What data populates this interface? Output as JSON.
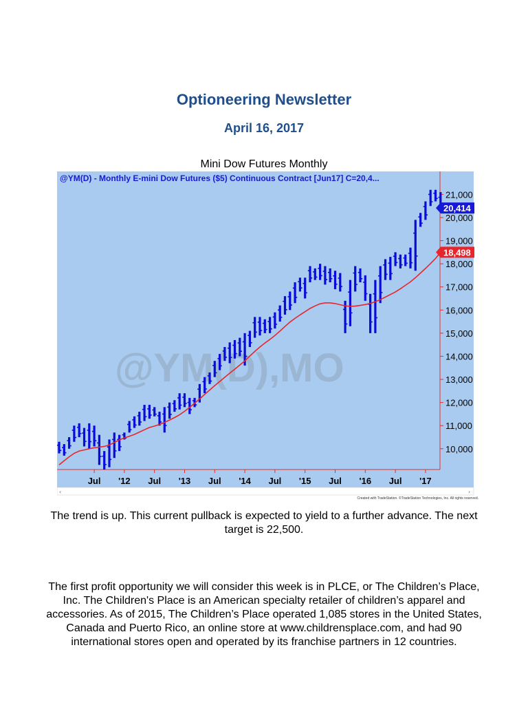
{
  "header": {
    "title": "Optioneering Newsletter",
    "date": "April 16, 2017"
  },
  "chart_caption": "Mini Dow Futures Monthly",
  "chart_data": {
    "type": "ohlc-bar",
    "title": "@YM(D) - Monthly  E-mini Dow Futures ($5) Continuous Contract [Jun17]  C=20,4...",
    "watermark": "@YM(D),MO",
    "footer_credit": "Created with TradeStation. ©TradeStation Technologies, Inc. All rights reserved.",
    "price_tag": "20,414",
    "ma_tag": "18,498",
    "ylim": [
      9100,
      21400
    ],
    "y_ticks": [
      {
        "label": "21,000",
        "value": 21000
      },
      {
        "label": "20,000",
        "value": 20000
      },
      {
        "label": "19,000",
        "value": 19000
      },
      {
        "label": "18,000",
        "value": 18000
      },
      {
        "label": "17,000",
        "value": 17000
      },
      {
        "label": "16,000",
        "value": 16000
      },
      {
        "label": "15,000",
        "value": 15000
      },
      {
        "label": "14,000",
        "value": 14000
      },
      {
        "label": "13,000",
        "value": 13000
      },
      {
        "label": "12,000",
        "value": 12000
      },
      {
        "label": "11,000",
        "value": 11000
      },
      {
        "label": "10,000",
        "value": 10000
      }
    ],
    "x_ticks": [
      {
        "label": "Jul",
        "index": 7
      },
      {
        "label": "'12",
        "index": 13
      },
      {
        "label": "Jul",
        "index": 19
      },
      {
        "label": "'13",
        "index": 25
      },
      {
        "label": "Jul",
        "index": 31
      },
      {
        "label": "'14",
        "index": 37
      },
      {
        "label": "Jul",
        "index": 43
      },
      {
        "label": "'15",
        "index": 49
      },
      {
        "label": "Jul",
        "index": 55
      },
      {
        "label": "'16",
        "index": 61
      },
      {
        "label": "Jul",
        "index": 67
      },
      {
        "label": "'17",
        "index": 73
      }
    ],
    "bars": [
      [
        10300,
        9800
      ],
      [
        10200,
        9700
      ],
      [
        10500,
        10000
      ],
      [
        11000,
        10300
      ],
      [
        11100,
        10500
      ],
      [
        10900,
        10100
      ],
      [
        11100,
        10000
      ],
      [
        11000,
        10100
      ],
      [
        10600,
        9300
      ],
      [
        9900,
        9100
      ],
      [
        10400,
        9200
      ],
      [
        10700,
        9600
      ],
      [
        10600,
        9900
      ],
      [
        10700,
        10400
      ],
      [
        11200,
        10700
      ],
      [
        11400,
        10900
      ],
      [
        11600,
        11000
      ],
      [
        11900,
        11200
      ],
      [
        11900,
        11300
      ],
      [
        11800,
        11400
      ],
      [
        11600,
        11000
      ],
      [
        11800,
        10700
      ],
      [
        12000,
        11300
      ],
      [
        12100,
        11600
      ],
      [
        12400,
        11700
      ],
      [
        12400,
        11800
      ],
      [
        12200,
        11500
      ],
      [
        12200,
        11800
      ],
      [
        12800,
        12000
      ],
      [
        13100,
        12400
      ],
      [
        13300,
        12800
      ],
      [
        13800,
        13100
      ],
      [
        14100,
        13400
      ],
      [
        14400,
        13800
      ],
      [
        14600,
        13700
      ],
      [
        14700,
        13900
      ],
      [
        14800,
        14000
      ],
      [
        15000,
        13600
      ],
      [
        15100,
        14400
      ],
      [
        15700,
        14800
      ],
      [
        15700,
        14900
      ],
      [
        15600,
        15000
      ],
      [
        15700,
        15000
      ],
      [
        15900,
        15200
      ],
      [
        16200,
        15500
      ],
      [
        16600,
        15800
      ],
      [
        16800,
        16000
      ],
      [
        17200,
        16300
      ],
      [
        17400,
        16800
      ],
      [
        17400,
        16500
      ],
      [
        17900,
        17200
      ],
      [
        17800,
        17300
      ],
      [
        18000,
        17300
      ],
      [
        17900,
        17100
      ],
      [
        17800,
        17200
      ],
      [
        17700,
        16900
      ],
      [
        17600,
        16800
      ],
      [
        16400,
        15000
      ],
      [
        17300,
        15300
      ],
      [
        17900,
        16800
      ],
      [
        17800,
        17200
      ],
      [
        17500,
        16400
      ],
      [
        16700,
        15000
      ],
      [
        17300,
        15000
      ],
      [
        17900,
        16300
      ],
      [
        18200,
        17300
      ],
      [
        18300,
        17300
      ],
      [
        18500,
        17900
      ],
      [
        18400,
        17800
      ],
      [
        18400,
        17900
      ],
      [
        18700,
        17800
      ],
      [
        19900,
        17700
      ],
      [
        20200,
        19600
      ],
      [
        20700,
        19900
      ],
      [
        21200,
        20500
      ],
      [
        21200,
        20700
      ],
      [
        21100,
        20300
      ]
    ],
    "moving_average": [
      9300,
      9480,
      9650,
      9800,
      9900,
      9950,
      10000,
      10040,
      10070,
      10100,
      10160,
      10270,
      10380,
      10470,
      10540,
      10620,
      10720,
      10820,
      10920,
      10980,
      11050,
      11140,
      11240,
      11350,
      11470,
      11620,
      11790,
      11970,
      12160,
      12350,
      12540,
      12730,
      12910,
      13090,
      13270,
      13440,
      13620,
      13800,
      14010,
      14210,
      14400,
      14570,
      14730,
      14900,
      15090,
      15290,
      15480,
      15640,
      15790,
      15930,
      16070,
      16180,
      16270,
      16310,
      16310,
      16280,
      16230,
      16180,
      16160,
      16170,
      16200,
      16240,
      16290,
      16360,
      16450,
      16560,
      16670,
      16780,
      16920,
      17070,
      17220,
      17400,
      17600,
      17800,
      18010,
      18230,
      18500
    ]
  },
  "paragraph1": "The trend is up. This current pullback is expected to yield to a further advance. The next target is 22,500.",
  "paragraph2": "The first profit opportunity we will consider this week is in PLCE, or The Children’s Place, Inc. The Children's Place is an American specialty retailer of children’s apparel and accessories. As of 2015, The Children’s Place operated 1,085 stores in the United States, Canada and Puerto Rico, an online store at www.childrensplace.com, and had 90 international stores open and operated by its franchise partners in 12 countries.",
  "colors": {
    "heading": "#1f4e8c",
    "chart_bg": "#a9cbf0",
    "bar": "#0b0bd8",
    "moving_average": "#e8252a",
    "axis": "#e03030"
  }
}
